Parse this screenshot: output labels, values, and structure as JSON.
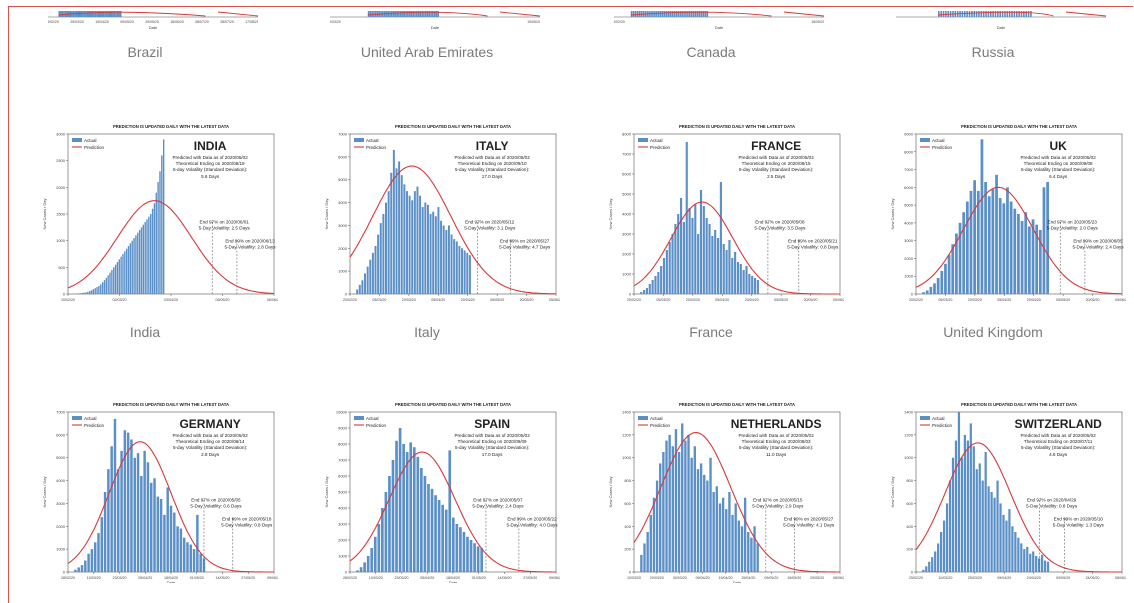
{
  "colors": {
    "bar": "#5b8fc7",
    "line": "#d9383a",
    "axis": "#555555",
    "dash": "#666666",
    "text": "#222222",
    "caption": "#7a7a7a"
  },
  "top_strip": {
    "xlabel": "Date",
    "panels": [
      {
        "ticks": [
          "15/02/20",
          "29/03/20",
          "19/04/20",
          "09/05/20",
          "29/05/20",
          "18/06/20",
          "08/07/20",
          "28/07/20",
          "17/08/20"
        ],
        "bars_from": 0.05,
        "bars_to": 0.35
      },
      {
        "ticks": [
          "10/03/20",
          "",
          "",
          "",
          "",
          "",
          "",
          "",
          "",
          "19/05/20"
        ],
        "bars_from": 0.18,
        "bars_to": 0.52
      },
      {
        "ticks": [
          "15/02/20",
          "",
          "",
          "",
          "",
          "",
          "",
          "",
          "",
          "15/05/20"
        ],
        "bars_from": 0.08,
        "bars_to": 0.45
      },
      {
        "ticks": [
          "",
          "",
          "",
          "",
          "",
          "",
          "",
          "",
          "",
          ""
        ],
        "bars_from": 0.2,
        "bars_to": 0.65
      }
    ]
  },
  "captions_top": [
    "Brazil",
    "United Arab Emirates",
    "Canada",
    "Russia"
  ],
  "captions_mid": [
    "India",
    "Italy",
    "France",
    "United Kingdom"
  ],
  "chart_data": [
    {
      "type": "bar",
      "country": "INDIA",
      "banner": "PREDICTION IS UPDATED DAILY WITH THE LATEST DATA",
      "legend": [
        "Actual",
        "Prediction"
      ],
      "ylabel": "New Cases / Day",
      "xlabel": "",
      "yticks": [
        "0",
        "500",
        "1000",
        "1500",
        "2000",
        "2500",
        "3000"
      ],
      "ylim": [
        0,
        3000
      ],
      "xticks": [
        "10/02/20",
        "02/03/20",
        "03/04/20",
        "05/05/20",
        "06/06/20"
      ],
      "predicted_line": "Predicted with Data as of 2020/05/02",
      "ending_line": "Theoretical Ending on 2020/08/19",
      "volatility_label": "5-day Volatility (Standard Deviation):",
      "volatility_value": "5.6 Days",
      "end97": "End 97% on 2020/06/01",
      "vol97": "5-Day Volatility: 2.5 Days",
      "end99": "End 99% on 2020/06/13",
      "vol99": "5-Day Volatility: 2.8 Days",
      "values": [
        5,
        8,
        12,
        15,
        20,
        25,
        30,
        40,
        55,
        70,
        90,
        110,
        130,
        150,
        180,
        220,
        260,
        300,
        350,
        400,
        450,
        500,
        550,
        600,
        650,
        700,
        750,
        800,
        850,
        900,
        950,
        1000,
        1050,
        1100,
        1150,
        1200,
        1250,
        1300,
        1350,
        1400,
        1450,
        1500,
        1600,
        1700,
        1900,
        2100,
        2300,
        2600,
        2900
      ],
      "peak": 1750,
      "peak_pos": 0.42,
      "width": 0.18,
      "vline1": 0.7,
      "vline2": 0.82,
      "bars_end": 0.44
    },
    {
      "type": "bar",
      "country": "ITALY",
      "banner": "PREDICTION IS UPDATED DAILY WITH THE LATEST DATA",
      "legend": [
        "Actual",
        "Prediction"
      ],
      "ylabel": "New Cases / Day",
      "xlabel": "",
      "yticks": [
        "0",
        "1000",
        "2000",
        "3000",
        "4000",
        "5000",
        "6000",
        "7000"
      ],
      "ylim": [
        0,
        7000
      ],
      "xticks": [
        "20/02/20",
        "05/03/20",
        "20/03/20",
        "05/04/20",
        "20/04/20",
        "05/05/20",
        "20/05/20",
        "05/06/20"
      ],
      "predicted_line": "Predicted with Data as of 2020/05/02",
      "ending_line": "Theoretical Ending on 2020/09/10",
      "volatility_label": "5-day Volatility (Standard Deviation):",
      "volatility_value": "17.0 Days",
      "end97": "End 97% on 2020/05/12",
      "vol97": "5-Day Volatility: 3.1 Days",
      "end99": "End 99% on 2020/05/27",
      "vol99": "5-Day Volatility: 4.7 Days",
      "values": [
        200,
        400,
        600,
        900,
        1200,
        1500,
        1800,
        2100,
        2600,
        3100,
        3500,
        4000,
        4500,
        5300,
        6300,
        5500,
        5800,
        5200,
        4800,
        4500,
        4300,
        4100,
        4500,
        4700,
        4300,
        3800,
        4000,
        3900,
        3500,
        3600,
        3400,
        3800,
        3200,
        3000,
        2800,
        3000,
        2600,
        2400,
        2300,
        2100,
        2000,
        1900,
        1800,
        1700
      ],
      "peak": 5600,
      "peak_pos": 0.3,
      "width": 0.19,
      "vline1": 0.62,
      "vline2": 0.78,
      "bars_end": 0.56
    },
    {
      "type": "bar",
      "country": "FRANCE",
      "banner": "PREDICTION IS UPDATED DAILY WITH THE LATEST DATA",
      "legend": [
        "Actual",
        "Prediction"
      ],
      "ylabel": "New Cases / Day",
      "xlabel": "",
      "yticks": [
        "0",
        "1000",
        "2000",
        "3000",
        "4000",
        "5000",
        "6000",
        "7000",
        "8000"
      ],
      "ylim": [
        0,
        8000
      ],
      "xticks": [
        "20/02/20",
        "05/03/20",
        "20/03/20",
        "05/04/20",
        "20/04/20",
        "05/05/20",
        "20/05/20",
        "05/06/20"
      ],
      "predicted_line": "Predicted with Data as of 2020/05/02",
      "ending_line": "Theoretical Ending on 2020/08/15",
      "volatility_label": "5-day Volatility (Standard Deviation):",
      "volatility_value": "2.5 Days",
      "end97": "End 97% on 2020/05/08",
      "vol97": "5-Day Volatility: 3.5 Days",
      "end99": "End 99% on 2020/05/21",
      "vol99": "5-Day Volatility: 0.8 Days",
      "values": [
        100,
        200,
        300,
        500,
        700,
        900,
        1100,
        1400,
        1800,
        2200,
        2600,
        3000,
        3500,
        4000,
        4800,
        3600,
        7600,
        4300,
        3800,
        4500,
        3000,
        5200,
        4400,
        3800,
        3500,
        2900,
        3200,
        2800,
        5600,
        2500,
        2200,
        2700,
        1800,
        2100,
        1600,
        1500,
        1200,
        1400,
        1000,
        900,
        800,
        700
      ],
      "peak": 4600,
      "peak_pos": 0.33,
      "width": 0.15,
      "vline1": 0.65,
      "vline2": 0.8,
      "bars_end": 0.58
    },
    {
      "type": "bar",
      "country": "UK",
      "banner": "PREDICTION IS UPDATED DAILY WITH THE LATEST DATA",
      "legend": [
        "Actual",
        "Prediction"
      ],
      "ylabel": "New Cases / Day",
      "xlabel": "",
      "yticks": [
        "0",
        "1000",
        "2000",
        "3000",
        "4000",
        "5000",
        "6000",
        "7000",
        "8000",
        "9000"
      ],
      "ylim": [
        0,
        9000
      ],
      "xticks": [
        "20/02/20",
        "05/03/20",
        "20/03/20",
        "05/04/20",
        "20/04/20",
        "05/05/20",
        "20/05/20",
        "05/06/20"
      ],
      "predicted_line": "Predicted with Data as of 2020/05/02",
      "ending_line": "Theoretical Ending on 2020/09/08",
      "volatility_label": "5-day Volatility (Standard Deviation):",
      "volatility_value": "6.4 Days",
      "end97": "End 97% on 2020/05/23",
      "vol97": "5-Day Volatility: 2.0 Days",
      "end99": "End 99% on 2020/06/05",
      "vol99": "5-Day Volatility: 2.4 Days",
      "values": [
        100,
        200,
        400,
        600,
        900,
        1300,
        1700,
        2200,
        2800,
        3400,
        4000,
        4600,
        5200,
        5800,
        6400,
        5800,
        8700,
        6300,
        5500,
        5900,
        6700,
        5400,
        5100,
        6000,
        5200,
        4800,
        4500,
        4100,
        4600,
        3800,
        4200,
        3900,
        3600,
        6000,
        6300
      ],
      "peak": 6000,
      "peak_pos": 0.4,
      "width": 0.17,
      "vline1": 0.7,
      "vline2": 0.82,
      "bars_end": 0.62
    },
    {
      "type": "bar",
      "country": "GERMANY",
      "banner": "PREDICTION IS UPDATED DAILY WITH THE LATEST DATA",
      "legend": [
        "Actual",
        "Prediction"
      ],
      "ylabel": "New Cases / Day",
      "xlabel": "Date",
      "yticks": [
        "0",
        "1000",
        "2000",
        "3000",
        "4000",
        "5000",
        "6000",
        "7000"
      ],
      "ylim": [
        0,
        7000
      ],
      "xticks": [
        "28/02/20",
        "10/03/20",
        "23/03/20",
        "05/04/20",
        "18/04/20",
        "01/05/20",
        "14/05/20",
        "27/05/20",
        "09/06/20"
      ],
      "predicted_line": "Predicted with Data as of 2020/05/02",
      "ending_line": "Theoretical Ending on 2020/08/14",
      "volatility_label": "5-day Volatility (Standard Deviation):",
      "volatility_value": "2.8 Days",
      "end97": "End 97% on 2020/05/05",
      "vol97": "5-Day Volatility: 0.6 Days",
      "end99": "End 99% on 2020/05/18",
      "vol99": "5-Day Volatility: 0.8 Days",
      "values": [
        100,
        200,
        300,
        500,
        800,
        1000,
        1300,
        1700,
        2400,
        3500,
        4500,
        5500,
        6700,
        4500,
        5300,
        6200,
        6100,
        5800,
        5000,
        5200,
        4200,
        5300,
        4800,
        3900,
        4100,
        3300,
        3200,
        2500,
        3700,
        2900,
        2600,
        2000,
        1900,
        1500,
        1300,
        1200,
        1000,
        2500,
        800,
        600
      ],
      "peak": 5700,
      "peak_pos": 0.35,
      "width": 0.15,
      "vline1": 0.66,
      "vline2": 0.8,
      "bars_end": 0.64
    },
    {
      "type": "bar",
      "country": "SPAIN",
      "banner": "PREDICTION IS UPDATED DAILY WITH THE LATEST DATA",
      "legend": [
        "Actual",
        "Prediction"
      ],
      "ylabel": "New Cases / Day",
      "xlabel": "Date",
      "yticks": [
        "0",
        "1000",
        "2000",
        "3000",
        "4000",
        "5000",
        "6000",
        "7000",
        "8000",
        "9000",
        "10000"
      ],
      "ylim": [
        0,
        10000
      ],
      "xticks": [
        "28/02/20",
        "10/03/20",
        "23/03/20",
        "05/04/20",
        "18/04/20",
        "01/05/20",
        "14/05/20",
        "27/05/20",
        "09/06/20"
      ],
      "predicted_line": "Predicted with Data as of 2020/05/02",
      "ending_line": "Theoretical Ending on 2020/09/09",
      "volatility_label": "5-day Volatility (Standard Deviation):",
      "volatility_value": "17.0 Days",
      "end97": "End 97% on 2020/05/07",
      "vol97": "5-Day Volatility: 2.4 Days",
      "end99": "End 99% on 2020/05/22",
      "vol99": "5-Day Volatility: 4.0 Days",
      "values": [
        100,
        300,
        600,
        1000,
        1500,
        2200,
        3000,
        4000,
        5000,
        6000,
        7000,
        8200,
        9000,
        8000,
        7500,
        8100,
        7800,
        7200,
        6500,
        6000,
        5500,
        5200,
        4800,
        4500,
        4200,
        3900,
        7600,
        3400,
        3000,
        2800,
        2500,
        2200,
        2000,
        1800,
        1600,
        1500
      ],
      "peak": 7500,
      "peak_pos": 0.35,
      "width": 0.16,
      "vline1": 0.66,
      "vline2": 0.82,
      "bars_end": 0.62
    },
    {
      "type": "bar",
      "country": "NETHERLANDS",
      "banner": "PREDICTION IS UPDATED DAILY WITH THE LATEST DATA",
      "legend": [
        "Actual",
        "Prediction"
      ],
      "ylabel": "New Cases / Day",
      "xlabel": "Date",
      "yticks": [
        "0",
        "200",
        "400",
        "600",
        "800",
        "1000",
        "1200",
        "1400"
      ],
      "ylim": [
        0,
        1400
      ],
      "xticks": [
        "10/03/20",
        "20/03/20",
        "30/03/20",
        "09/04/20",
        "19/04/20",
        "29/04/20",
        "09/05/20",
        "19/05/20",
        "29/05/20",
        "08/06/20"
      ],
      "predicted_line": "Predicted with Data as of 2020/05/02",
      "ending_line": "Theoretical Ending on 2020/08/03",
      "volatility_label": "5-day Volatility (Standard Deviation):",
      "volatility_value": "11.0 Days",
      "end97": "End 97% on 2020/05/15",
      "vol97": "5-Day Volatility: 2.9 Days",
      "end99": "End 99% on 2020/05/27",
      "vol99": "5-Day Volatility: 4.1 Days",
      "values": [
        150,
        250,
        350,
        500,
        650,
        800,
        950,
        1050,
        1150,
        1200,
        1100,
        1250,
        1050,
        1300,
        1150,
        1200,
        1000,
        1100,
        900,
        950,
        850,
        800,
        1000,
        700,
        750,
        600,
        650,
        550,
        700,
        500,
        600,
        450,
        400,
        650,
        350,
        300,
        400,
        250
      ],
      "peak": 1220,
      "peak_pos": 0.3,
      "width": 0.17,
      "vline1": 0.64,
      "vline2": 0.78,
      "bars_end": 0.58
    },
    {
      "type": "bar",
      "country": "SWITZERLAND",
      "banner": "PREDICTION IS UPDATED DAILY WITH THE LATEST DATA",
      "legend": [
        "Actual",
        "Prediction"
      ],
      "ylabel": "New Cases / Day",
      "xlabel": "",
      "yticks": [
        "0",
        "200",
        "400",
        "600",
        "800",
        "1000",
        "1200",
        "1400"
      ],
      "ylim": [
        0,
        1400
      ],
      "xticks": [
        "25/02/20",
        "10/03/20",
        "25/03/20",
        "09/04/20",
        "24/04/20",
        "09/05/20",
        "24/05/20",
        "08/06/20"
      ],
      "predicted_line": "Predicted with Data as of 2020/05/02",
      "ending_line": "Theoretical Ending on 2020/07/11",
      "volatility_label": "5-day Volatility (Standard Deviation):",
      "volatility_value": "4.6 Days",
      "end97": "End 97% on 2020/04/29",
      "vol97": "5-Day Volatility: 0.8 Days",
      "end99": "End 99% on 2020/05/10",
      "vol99": "5-Day Volatility: 1.3 Days",
      "values": [
        20,
        50,
        90,
        130,
        180,
        250,
        350,
        450,
        600,
        800,
        1000,
        1150,
        1400,
        1000,
        1200,
        1150,
        1300,
        1100,
        900,
        950,
        800,
        1050,
        750,
        700,
        650,
        800,
        600,
        500,
        450,
        550,
        400,
        350,
        300,
        250,
        200,
        220,
        160,
        180,
        140,
        120,
        150,
        100,
        90
      ],
      "peak": 1130,
      "peak_pos": 0.3,
      "width": 0.16,
      "vline1": 0.6,
      "vline2": 0.72,
      "bars_end": 0.62
    }
  ]
}
